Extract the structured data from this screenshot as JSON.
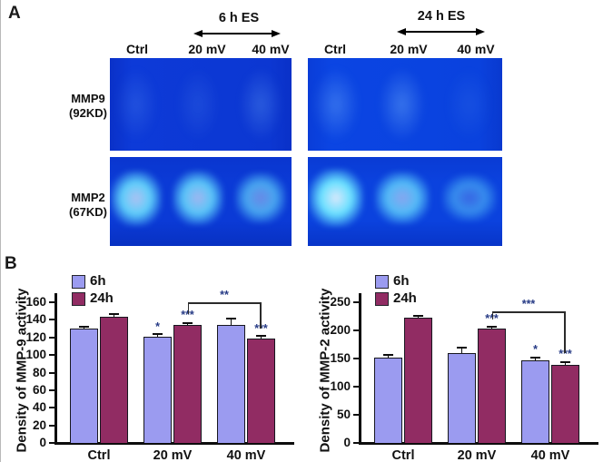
{
  "panel_a": {
    "label": "A",
    "es_groups": [
      {
        "label": "6 h ES"
      },
      {
        "label": "24 h ES"
      }
    ],
    "lanes": [
      "Ctrl",
      "20 mV",
      "40 mV"
    ],
    "rows": [
      {
        "name": "MMP9",
        "kd": "(92KD)"
      },
      {
        "name": "MMP2",
        "kd": "(67KD)"
      }
    ],
    "gels": [
      {
        "id": "mmp9-6h",
        "band_intensities": [
          0.28,
          0.22,
          0.42
        ]
      },
      {
        "id": "mmp9-24h",
        "band_intensities": [
          0.55,
          0.6,
          0.16
        ]
      },
      {
        "id": "mmp2-6h",
        "band_intensities": [
          0.85,
          0.8,
          0.62
        ]
      },
      {
        "id": "mmp2-24h",
        "band_intensities": [
          1.0,
          0.72,
          0.45
        ]
      }
    ]
  },
  "panel_b": {
    "label": "B"
  },
  "colors": {
    "bar_6h": "#9b9bf0",
    "bar_24h": "#912c63",
    "significance": "#263a85",
    "gel_mmp9_6h_bg": "#0c38d6",
    "gel_mmp9_24h_bg": "#0a43e0",
    "gel_mmp2_6h_bg": "#0a38d2",
    "gel_mmp2_24h_bg": "#0a3fdb"
  },
  "chart_data": [
    {
      "type": "bar",
      "title": "",
      "ylabel": "Density of MMP-9 activity",
      "xlabel": "",
      "categories": [
        "Ctrl",
        "20 mV",
        "40 mV"
      ],
      "series": [
        {
          "name": "6h",
          "color": "#9b9bf0",
          "values": [
            130,
            121,
            134
          ],
          "errors": [
            2,
            2,
            7
          ],
          "sig": [
            "",
            "*",
            ""
          ]
        },
        {
          "name": "24h",
          "color": "#912c63",
          "values": [
            144,
            134,
            119
          ],
          "errors": [
            2,
            2,
            2
          ],
          "sig": [
            "",
            "***",
            "***"
          ]
        }
      ],
      "ylim": [
        0,
        170
      ],
      "yticks": [
        0,
        20,
        40,
        60,
        80,
        100,
        120,
        140,
        160
      ],
      "grid": false,
      "legend_position": "upper-left",
      "bracket": {
        "label": "**",
        "from": "20 mV / 24h",
        "to": "40 mV / 24h"
      }
    },
    {
      "type": "bar",
      "title": "",
      "ylabel": "Density of MMP-2 activity",
      "xlabel": "",
      "categories": [
        "Ctrl",
        "20 mV",
        "40 mV"
      ],
      "series": [
        {
          "name": "6h",
          "color": "#9b9bf0",
          "values": [
            152,
            160,
            147
          ],
          "errors": [
            4,
            8,
            4
          ],
          "sig": [
            "",
            "",
            "*"
          ]
        },
        {
          "name": "24h",
          "color": "#912c63",
          "values": [
            222,
            203,
            138
          ],
          "errors": [
            3,
            3,
            5
          ],
          "sig": [
            "",
            "***",
            "***"
          ]
        }
      ],
      "ylim": [
        0,
        265
      ],
      "yticks": [
        0,
        50,
        100,
        150,
        200,
        250
      ],
      "grid": false,
      "legend_position": "upper-left",
      "bracket": {
        "label": "***",
        "from": "20 mV / 24h",
        "to": "40 mV / 24h"
      }
    }
  ]
}
